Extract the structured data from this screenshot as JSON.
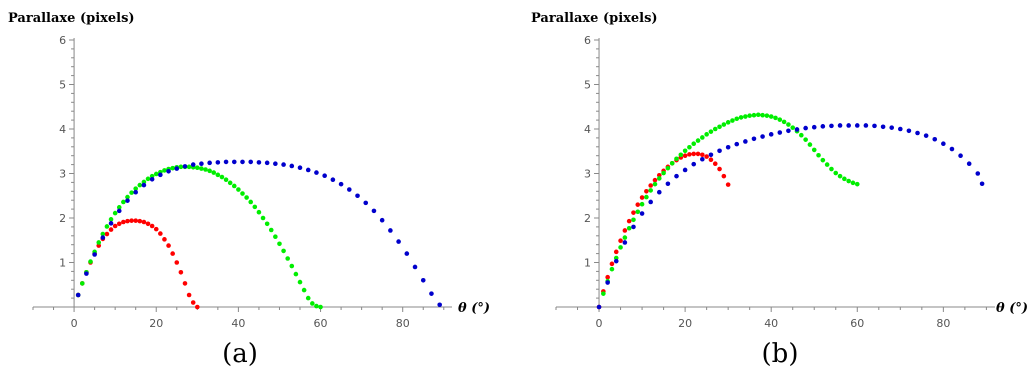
{
  "chart_data": [
    {
      "type": "scatter",
      "panel_label": "(a)",
      "ylabel": "Parallaxe (pixels)",
      "xlabel": "θ (°)",
      "xlim": [
        -10,
        92
      ],
      "ylim": [
        0,
        6
      ],
      "xticks": [
        0,
        20,
        40,
        60,
        80
      ],
      "yticks": [
        1,
        2,
        3,
        4,
        5,
        6
      ],
      "series": [
        {
          "color": "#ff0000",
          "x": [
            1,
            2,
            3,
            4,
            5,
            6,
            7,
            8,
            9,
            10,
            11,
            12,
            13,
            14,
            15,
            16,
            17,
            18,
            19,
            20,
            21,
            22,
            23,
            24,
            25,
            26,
            27,
            28,
            29,
            30
          ],
          "y": [
            0.27,
            0.53,
            0.78,
            1.0,
            1.2,
            1.38,
            1.53,
            1.64,
            1.74,
            1.82,
            1.87,
            1.91,
            1.93,
            1.94,
            1.94,
            1.93,
            1.91,
            1.87,
            1.82,
            1.75,
            1.65,
            1.52,
            1.38,
            1.2,
            1.0,
            0.78,
            0.53,
            0.27,
            0.1,
            0.0
          ]
        },
        {
          "color": "#00ee00",
          "x": [
            1,
            2,
            3,
            4,
            5,
            6,
            7,
            8,
            9,
            10,
            11,
            12,
            13,
            14,
            15,
            16,
            17,
            18,
            19,
            20,
            21,
            22,
            23,
            24,
            25,
            26,
            27,
            28,
            29,
            30,
            31,
            32,
            33,
            34,
            35,
            36,
            37,
            38,
            39,
            40,
            41,
            42,
            43,
            44,
            45,
            46,
            47,
            48,
            49,
            50,
            51,
            52,
            53,
            54,
            55,
            56,
            57,
            58,
            59,
            60
          ],
          "y": [
            0.27,
            0.53,
            0.78,
            1.02,
            1.24,
            1.45,
            1.64,
            1.81,
            1.97,
            2.11,
            2.24,
            2.36,
            2.47,
            2.57,
            2.66,
            2.74,
            2.81,
            2.88,
            2.94,
            2.99,
            3.03,
            3.07,
            3.1,
            3.12,
            3.14,
            3.15,
            3.15,
            3.15,
            3.14,
            3.13,
            3.11,
            3.09,
            3.06,
            3.02,
            2.97,
            2.92,
            2.86,
            2.79,
            2.72,
            2.64,
            2.55,
            2.46,
            2.36,
            2.25,
            2.13,
            2.0,
            1.87,
            1.73,
            1.58,
            1.42,
            1.26,
            1.09,
            0.92,
            0.74,
            0.56,
            0.38,
            0.2,
            0.08,
            0.02,
            0.0
          ]
        },
        {
          "color": "#0000cc",
          "x": [
            1,
            3,
            5,
            7,
            9,
            11,
            13,
            15,
            17,
            19,
            21,
            23,
            25,
            27,
            29,
            31,
            33,
            35,
            37,
            39,
            41,
            43,
            45,
            47,
            49,
            51,
            53,
            55,
            57,
            59,
            61,
            63,
            65,
            67,
            69,
            71,
            73,
            75,
            77,
            79,
            81,
            83,
            85,
            87,
            89
          ],
          "y": [
            0.27,
            0.75,
            1.18,
            1.56,
            1.88,
            2.16,
            2.39,
            2.58,
            2.74,
            2.87,
            2.97,
            3.05,
            3.11,
            3.16,
            3.2,
            3.22,
            3.24,
            3.25,
            3.26,
            3.26,
            3.26,
            3.26,
            3.25,
            3.24,
            3.22,
            3.2,
            3.17,
            3.13,
            3.08,
            3.02,
            2.95,
            2.86,
            2.76,
            2.64,
            2.5,
            2.34,
            2.16,
            1.95,
            1.72,
            1.47,
            1.2,
            0.9,
            0.6,
            0.3,
            0.05
          ]
        }
      ]
    },
    {
      "type": "scatter",
      "panel_label": "(b)",
      "ylabel": "Parallaxe (pixels)",
      "xlabel": "θ (°)",
      "xlim": [
        -10,
        92
      ],
      "ylim": [
        0,
        6
      ],
      "xticks": [
        0,
        20,
        40,
        60,
        80
      ],
      "yticks": [
        1,
        2,
        3,
        4,
        5,
        6
      ],
      "series": [
        {
          "color": "#ff0000",
          "x": [
            0,
            1,
            2,
            3,
            4,
            5,
            6,
            7,
            8,
            9,
            10,
            11,
            12,
            13,
            14,
            15,
            16,
            17,
            18,
            19,
            20,
            21,
            22,
            23,
            24,
            25,
            26,
            27,
            28,
            29,
            30
          ],
          "y": [
            0.0,
            0.35,
            0.67,
            0.97,
            1.24,
            1.49,
            1.72,
            1.93,
            2.12,
            2.3,
            2.46,
            2.6,
            2.73,
            2.85,
            2.96,
            3.06,
            3.15,
            3.23,
            3.3,
            3.36,
            3.4,
            3.43,
            3.44,
            3.44,
            3.42,
            3.38,
            3.31,
            3.22,
            3.1,
            2.94,
            2.75
          ]
        },
        {
          "color": "#00ee00",
          "x": [
            1,
            2,
            3,
            4,
            5,
            6,
            7,
            8,
            9,
            10,
            11,
            12,
            13,
            14,
            15,
            16,
            17,
            18,
            19,
            20,
            21,
            22,
            23,
            24,
            25,
            26,
            27,
            28,
            29,
            30,
            31,
            32,
            33,
            34,
            35,
            36,
            37,
            38,
            39,
            40,
            41,
            42,
            43,
            44,
            45,
            46,
            47,
            48,
            49,
            50,
            51,
            52,
            53,
            54,
            55,
            56,
            57,
            58,
            59,
            60
          ],
          "y": [
            0.3,
            0.58,
            0.85,
            1.1,
            1.34,
            1.56,
            1.77,
            1.96,
            2.14,
            2.31,
            2.47,
            2.62,
            2.76,
            2.89,
            3.01,
            3.12,
            3.23,
            3.33,
            3.42,
            3.51,
            3.59,
            3.67,
            3.74,
            3.81,
            3.88,
            3.94,
            4.0,
            4.05,
            4.1,
            4.15,
            4.19,
            4.23,
            4.26,
            4.28,
            4.3,
            4.31,
            4.32,
            4.31,
            4.3,
            4.28,
            4.25,
            4.21,
            4.16,
            4.1,
            4.03,
            3.95,
            3.86,
            3.76,
            3.65,
            3.53,
            3.41,
            3.3,
            3.2,
            3.1,
            3.01,
            2.94,
            2.88,
            2.83,
            2.79,
            2.76
          ]
        },
        {
          "color": "#0000cc",
          "x": [
            0,
            2,
            4,
            6,
            8,
            10,
            12,
            14,
            16,
            18,
            20,
            22,
            24,
            26,
            28,
            30,
            32,
            34,
            36,
            38,
            40,
            42,
            44,
            46,
            48,
            50,
            52,
            54,
            56,
            58,
            60,
            62,
            64,
            66,
            68,
            70,
            72,
            74,
            76,
            78,
            80,
            82,
            84,
            86,
            88,
            89
          ],
          "y": [
            0.0,
            0.55,
            1.03,
            1.45,
            1.8,
            2.1,
            2.36,
            2.58,
            2.77,
            2.94,
            3.08,
            3.21,
            3.32,
            3.42,
            3.51,
            3.59,
            3.66,
            3.72,
            3.78,
            3.83,
            3.88,
            3.92,
            3.96,
            3.99,
            4.02,
            4.04,
            4.06,
            4.07,
            4.08,
            4.08,
            4.08,
            4.08,
            4.07,
            4.05,
            4.03,
            4.0,
            3.96,
            3.91,
            3.85,
            3.77,
            3.67,
            3.55,
            3.4,
            3.22,
            3.0,
            2.77
          ]
        }
      ]
    }
  ]
}
